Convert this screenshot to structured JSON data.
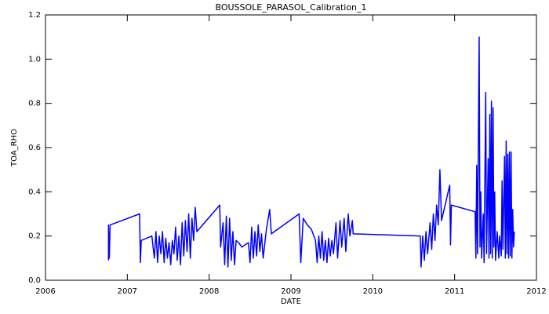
{
  "chart_data": {
    "type": "line",
    "title": "BOUSSOLE_PARASOL_Calibration_1",
    "x_label": "DATE",
    "y_label": "TOA_RHO",
    "color": "#0000ff",
    "x": [
      2006.77,
      2006.77,
      2006.78,
      2006.79,
      2007.15,
      2007.16,
      2007.17,
      2007.3,
      2007.33,
      2007.35,
      2007.37,
      2007.39,
      2007.41,
      2007.43,
      2007.45,
      2007.47,
      2007.49,
      2007.51,
      2007.53,
      2007.55,
      2007.57,
      2007.59,
      2007.61,
      2007.63,
      2007.65,
      2007.67,
      2007.69,
      2007.71,
      2007.73,
      2007.75,
      2007.77,
      2007.79,
      2007.81,
      2007.83,
      2007.85,
      2008.13,
      2008.14,
      2008.17,
      2008.19,
      2008.21,
      2008.23,
      2008.25,
      2008.27,
      2008.29,
      2008.31,
      2008.33,
      2008.36,
      2008.4,
      2008.44,
      2008.48,
      2008.5,
      2008.52,
      2008.54,
      2008.56,
      2008.58,
      2008.6,
      2008.62,
      2008.64,
      2008.66,
      2008.7,
      2008.74,
      2008.76,
      2009.1,
      2009.12,
      2009.15,
      2009.2,
      2009.25,
      2009.3,
      2009.32,
      2009.34,
      2009.36,
      2009.38,
      2009.4,
      2009.42,
      2009.44,
      2009.46,
      2009.48,
      2009.5,
      2009.52,
      2009.55,
      2009.57,
      2009.6,
      2009.62,
      2009.65,
      2009.67,
      2009.7,
      2009.72,
      2009.75,
      2009.76,
      2010.58,
      2010.59,
      2010.61,
      2010.63,
      2010.65,
      2010.67,
      2010.7,
      2010.72,
      2010.74,
      2010.76,
      2010.78,
      2010.8,
      2010.82,
      2010.84,
      2010.94,
      2010.95,
      2010.96,
      2011.25,
      2011.26,
      2011.27,
      2011.28,
      2011.3,
      2011.31,
      2011.32,
      2011.33,
      2011.35,
      2011.36,
      2011.38,
      2011.39,
      2011.41,
      2011.42,
      2011.43,
      2011.44,
      2011.45,
      2011.46,
      2011.47,
      2011.48,
      2011.49,
      2011.5,
      2011.52,
      2011.54,
      2011.55,
      2011.57,
      2011.58,
      2011.59,
      2011.61,
      2011.62,
      2011.63,
      2011.64,
      2011.65,
      2011.66,
      2011.67,
      2011.68,
      2011.69,
      2011.7,
      2011.71,
      2011.72,
      2011.73
    ],
    "values": [
      0.09,
      0.25,
      0.1,
      0.25,
      0.3,
      0.08,
      0.18,
      0.2,
      0.1,
      0.22,
      0.08,
      0.2,
      0.12,
      0.22,
      0.08,
      0.19,
      0.1,
      0.17,
      0.07,
      0.18,
      0.12,
      0.24,
      0.09,
      0.2,
      0.07,
      0.26,
      0.11,
      0.27,
      0.13,
      0.3,
      0.1,
      0.28,
      0.18,
      0.33,
      0.22,
      0.34,
      0.15,
      0.26,
      0.07,
      0.29,
      0.06,
      0.28,
      0.09,
      0.22,
      0.07,
      0.18,
      0.17,
      0.15,
      0.16,
      0.17,
      0.08,
      0.24,
      0.1,
      0.22,
      0.11,
      0.25,
      0.13,
      0.21,
      0.1,
      0.23,
      0.32,
      0.21,
      0.3,
      0.08,
      0.28,
      0.25,
      0.23,
      0.18,
      0.08,
      0.2,
      0.1,
      0.22,
      0.09,
      0.18,
      0.08,
      0.19,
      0.11,
      0.18,
      0.12,
      0.26,
      0.1,
      0.27,
      0.15,
      0.28,
      0.13,
      0.3,
      0.2,
      0.27,
      0.21,
      0.2,
      0.06,
      0.2,
      0.09,
      0.22,
      0.12,
      0.26,
      0.14,
      0.3,
      0.18,
      0.34,
      0.25,
      0.5,
      0.27,
      0.43,
      0.16,
      0.34,
      0.31,
      0.1,
      0.52,
      0.12,
      1.1,
      0.15,
      0.4,
      0.1,
      0.3,
      0.08,
      0.85,
      0.12,
      0.55,
      0.1,
      0.75,
      0.12,
      0.81,
      0.1,
      0.78,
      0.15,
      0.4,
      0.09,
      0.22,
      0.1,
      0.2,
      0.11,
      0.45,
      0.14,
      0.56,
      0.1,
      0.63,
      0.12,
      0.57,
      0.1,
      0.58,
      0.11,
      0.58,
      0.1,
      0.32,
      0.15,
      0.22
    ],
    "xlim": [
      2006,
      2012
    ],
    "xticks": [
      2006,
      2007,
      2008,
      2009,
      2010,
      2011,
      2012
    ],
    "ylim": [
      0,
      1.2
    ],
    "yticks": [
      {
        "value": 0,
        "label": "0.0"
      },
      0.2,
      0.4,
      0.6,
      0.8,
      {
        "value": 1,
        "label": "1.0"
      },
      1.2
    ]
  }
}
